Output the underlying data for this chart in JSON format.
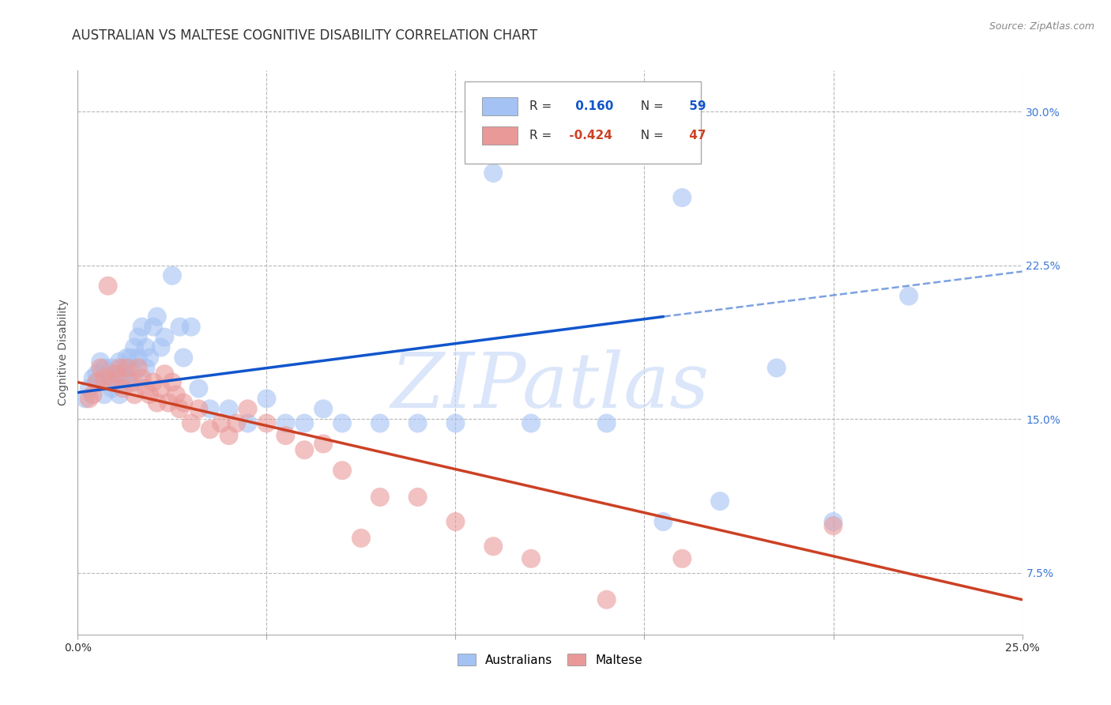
{
  "title": "AUSTRALIAN VS MALTESE COGNITIVE DISABILITY CORRELATION CHART",
  "source": "Source: ZipAtlas.com",
  "ylabel": "Cognitive Disability",
  "xlim": [
    0.0,
    0.25
  ],
  "ylim": [
    0.045,
    0.32
  ],
  "yticks": [
    0.075,
    0.15,
    0.225,
    0.3
  ],
  "ytick_labels": [
    "7.5%",
    "15.0%",
    "22.5%",
    "30.0%"
  ],
  "xticks": [
    0.0,
    0.05,
    0.1,
    0.15,
    0.2,
    0.25
  ],
  "xtick_labels": [
    "0.0%",
    "",
    "",
    "",
    "",
    "25.0%"
  ],
  "blue_R": 0.16,
  "blue_N": 59,
  "pink_R": -0.424,
  "pink_N": 47,
  "blue_color": "#a4c2f4",
  "pink_color": "#ea9999",
  "blue_line_color": "#1155cc",
  "pink_line_color": "#cc4125",
  "bg_color": "#ffffff",
  "grid_color": "#b7b7b7",
  "blue_x": [
    0.002,
    0.003,
    0.004,
    0.005,
    0.005,
    0.006,
    0.007,
    0.007,
    0.008,
    0.008,
    0.009,
    0.009,
    0.01,
    0.01,
    0.011,
    0.011,
    0.012,
    0.012,
    0.013,
    0.013,
    0.014,
    0.014,
    0.015,
    0.015,
    0.016,
    0.016,
    0.017,
    0.018,
    0.018,
    0.019,
    0.02,
    0.021,
    0.022,
    0.023,
    0.025,
    0.027,
    0.028,
    0.03,
    0.032,
    0.035,
    0.04,
    0.045,
    0.05,
    0.055,
    0.06,
    0.065,
    0.07,
    0.08,
    0.09,
    0.1,
    0.11,
    0.12,
    0.14,
    0.155,
    0.16,
    0.17,
    0.185,
    0.2,
    0.22
  ],
  "blue_y": [
    0.16,
    0.165,
    0.17,
    0.172,
    0.168,
    0.178,
    0.162,
    0.175,
    0.168,
    0.172,
    0.165,
    0.175,
    0.17,
    0.168,
    0.178,
    0.162,
    0.175,
    0.168,
    0.18,
    0.17,
    0.175,
    0.18,
    0.185,
    0.168,
    0.18,
    0.19,
    0.195,
    0.185,
    0.175,
    0.18,
    0.195,
    0.2,
    0.185,
    0.19,
    0.22,
    0.195,
    0.18,
    0.195,
    0.165,
    0.155,
    0.155,
    0.148,
    0.16,
    0.148,
    0.148,
    0.155,
    0.148,
    0.148,
    0.148,
    0.148,
    0.27,
    0.148,
    0.148,
    0.1,
    0.258,
    0.11,
    0.175,
    0.1,
    0.21
  ],
  "pink_x": [
    0.003,
    0.004,
    0.005,
    0.006,
    0.007,
    0.008,
    0.009,
    0.01,
    0.011,
    0.012,
    0.013,
    0.014,
    0.015,
    0.016,
    0.017,
    0.018,
    0.019,
    0.02,
    0.021,
    0.022,
    0.023,
    0.024,
    0.025,
    0.026,
    0.027,
    0.028,
    0.03,
    0.032,
    0.035,
    0.038,
    0.04,
    0.042,
    0.045,
    0.05,
    0.055,
    0.06,
    0.065,
    0.07,
    0.075,
    0.08,
    0.09,
    0.1,
    0.11,
    0.12,
    0.14,
    0.16,
    0.2
  ],
  "pink_y": [
    0.16,
    0.162,
    0.168,
    0.175,
    0.17,
    0.215,
    0.168,
    0.172,
    0.175,
    0.165,
    0.175,
    0.168,
    0.162,
    0.175,
    0.17,
    0.165,
    0.162,
    0.168,
    0.158,
    0.165,
    0.172,
    0.158,
    0.168,
    0.162,
    0.155,
    0.158,
    0.148,
    0.155,
    0.145,
    0.148,
    0.142,
    0.148,
    0.155,
    0.148,
    0.142,
    0.135,
    0.138,
    0.125,
    0.092,
    0.112,
    0.112,
    0.1,
    0.088,
    0.082,
    0.062,
    0.082,
    0.098
  ],
  "blue_line_x0": 0.0,
  "blue_line_x_solid_end": 0.155,
  "blue_line_x1": 0.25,
  "blue_line_y0": 0.163,
  "blue_line_y_solid_end": 0.2,
  "blue_line_y1": 0.222,
  "pink_line_x0": 0.0,
  "pink_line_x1": 0.25,
  "pink_line_y0": 0.168,
  "pink_line_y1": 0.062
}
